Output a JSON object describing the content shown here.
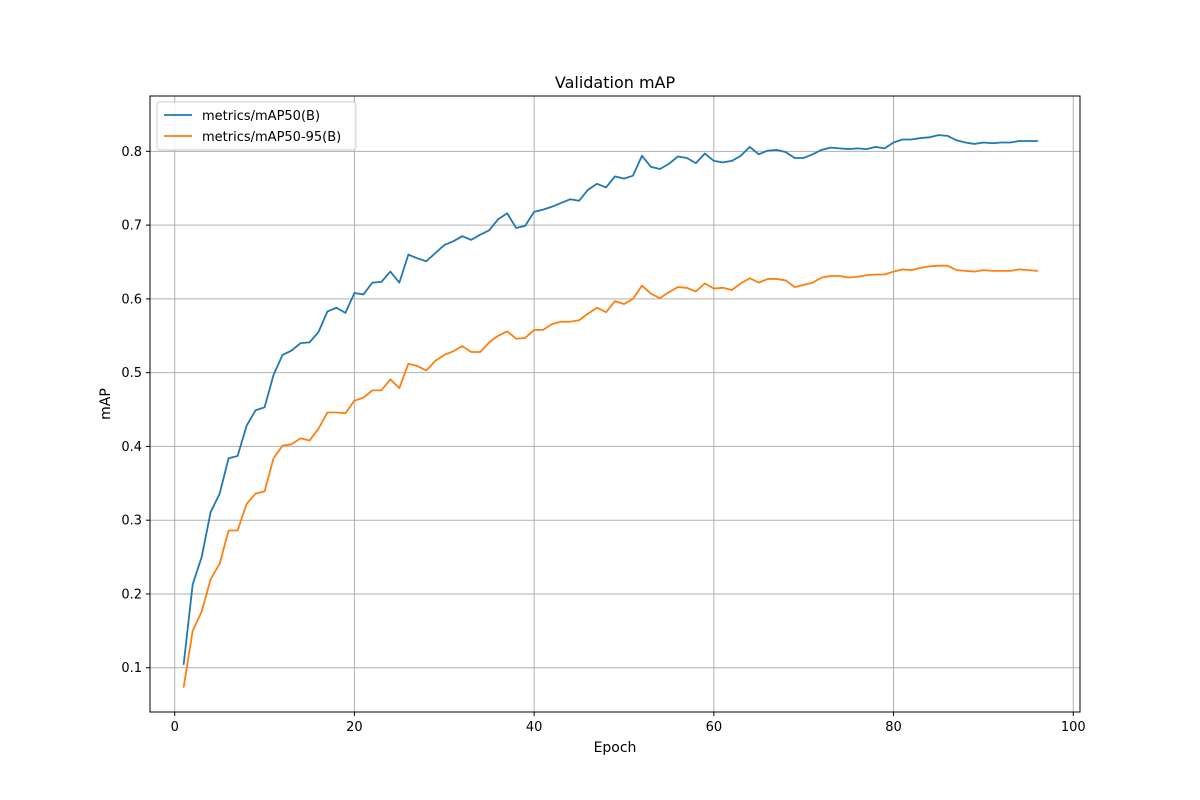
{
  "chart_data": {
    "type": "line",
    "title": "Validation mAP",
    "xlabel": "Epoch",
    "ylabel": "mAP",
    "xlim": [
      -2.75,
      100.75
    ],
    "ylim": [
      0.04,
      0.875
    ],
    "xticks": [
      0,
      20,
      40,
      60,
      80,
      100
    ],
    "yticks": [
      0.1,
      0.2,
      0.3,
      0.4,
      0.5,
      0.6,
      0.7,
      0.8
    ],
    "grid": true,
    "legend_position": "top-left",
    "x": [
      1,
      2,
      3,
      4,
      5,
      6,
      7,
      8,
      9,
      10,
      11,
      12,
      13,
      14,
      15,
      16,
      17,
      18,
      19,
      20,
      21,
      22,
      23,
      24,
      25,
      26,
      27,
      28,
      29,
      30,
      31,
      32,
      33,
      34,
      35,
      36,
      37,
      38,
      39,
      40,
      41,
      42,
      43,
      44,
      45,
      46,
      47,
      48,
      49,
      50,
      51,
      52,
      53,
      54,
      55,
      56,
      57,
      58,
      59,
      60,
      61,
      62,
      63,
      64,
      65,
      66,
      67,
      68,
      69,
      70,
      71,
      72,
      73,
      74,
      75,
      76,
      77,
      78,
      79,
      80,
      81,
      82,
      83,
      84,
      85,
      86,
      87,
      88,
      89,
      90,
      91,
      92,
      93,
      94,
      95,
      96
    ],
    "series": [
      {
        "name": "metrics/mAP50(B)",
        "color": "#1f77b4",
        "values": [
          0.105,
          0.213,
          0.25,
          0.311,
          0.336,
          0.384,
          0.387,
          0.428,
          0.449,
          0.453,
          0.497,
          0.524,
          0.53,
          0.54,
          0.541,
          0.555,
          0.583,
          0.588,
          0.581,
          0.608,
          0.606,
          0.622,
          0.623,
          0.637,
          0.622,
          0.66,
          0.655,
          0.651,
          0.662,
          0.673,
          0.678,
          0.685,
          0.68,
          0.687,
          0.693,
          0.708,
          0.716,
          0.696,
          0.699,
          0.718,
          0.721,
          0.725,
          0.73,
          0.735,
          0.733,
          0.748,
          0.756,
          0.751,
          0.766,
          0.763,
          0.767,
          0.794,
          0.779,
          0.776,
          0.783,
          0.793,
          0.791,
          0.784,
          0.797,
          0.787,
          0.785,
          0.787,
          0.794,
          0.806,
          0.796,
          0.801,
          0.802,
          0.799,
          0.791,
          0.791,
          0.796,
          0.802,
          0.805,
          0.804,
          0.803,
          0.804,
          0.803,
          0.806,
          0.804,
          0.812,
          0.816,
          0.816,
          0.818,
          0.819,
          0.822,
          0.821,
          0.815,
          0.812,
          0.81,
          0.812,
          0.811,
          0.812,
          0.812,
          0.814,
          0.814,
          0.814
        ]
      },
      {
        "name": "metrics/mAP50-95(B)",
        "color": "#ff7f0e",
        "values": [
          0.074,
          0.15,
          0.176,
          0.22,
          0.241,
          0.286,
          0.286,
          0.322,
          0.336,
          0.339,
          0.384,
          0.401,
          0.403,
          0.411,
          0.408,
          0.424,
          0.446,
          0.446,
          0.445,
          0.462,
          0.466,
          0.476,
          0.476,
          0.491,
          0.479,
          0.512,
          0.509,
          0.503,
          0.516,
          0.524,
          0.529,
          0.536,
          0.528,
          0.528,
          0.541,
          0.55,
          0.556,
          0.546,
          0.547,
          0.558,
          0.558,
          0.566,
          0.569,
          0.569,
          0.571,
          0.58,
          0.588,
          0.582,
          0.597,
          0.593,
          0.6,
          0.618,
          0.607,
          0.601,
          0.609,
          0.616,
          0.615,
          0.61,
          0.621,
          0.614,
          0.615,
          0.612,
          0.621,
          0.628,
          0.622,
          0.627,
          0.627,
          0.625,
          0.616,
          0.619,
          0.622,
          0.629,
          0.631,
          0.631,
          0.629,
          0.63,
          0.632,
          0.633,
          0.633,
          0.637,
          0.64,
          0.639,
          0.642,
          0.644,
          0.645,
          0.645,
          0.639,
          0.638,
          0.637,
          0.639,
          0.638,
          0.638,
          0.638,
          0.64,
          0.639,
          0.638
        ]
      }
    ]
  }
}
